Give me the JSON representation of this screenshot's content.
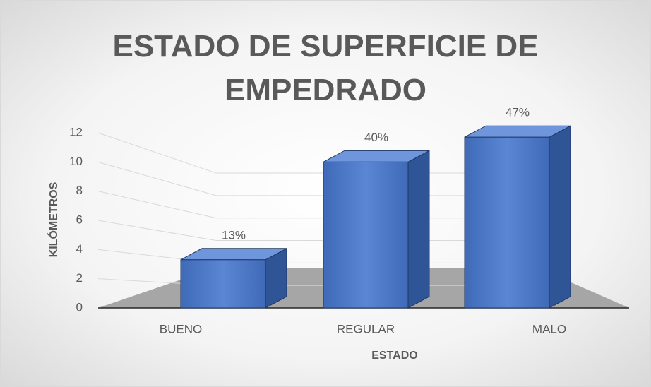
{
  "chart_data": {
    "type": "bar3d",
    "title": "ESTADO DE SUPERFICIE DE EMPEDRADO",
    "categories": [
      "BUENO",
      "REGULAR",
      "MALO"
    ],
    "values": [
      3.3,
      10,
      11.7
    ],
    "percent_labels": [
      "13%",
      "40%",
      "47%"
    ],
    "color": "#4472c4",
    "x_label": "ESTADO",
    "y_label": "KILÓMETROS",
    "ylim": [
      0,
      12
    ],
    "yticks": [
      0,
      2,
      4,
      6,
      8,
      10,
      12
    ],
    "grid": true
  }
}
